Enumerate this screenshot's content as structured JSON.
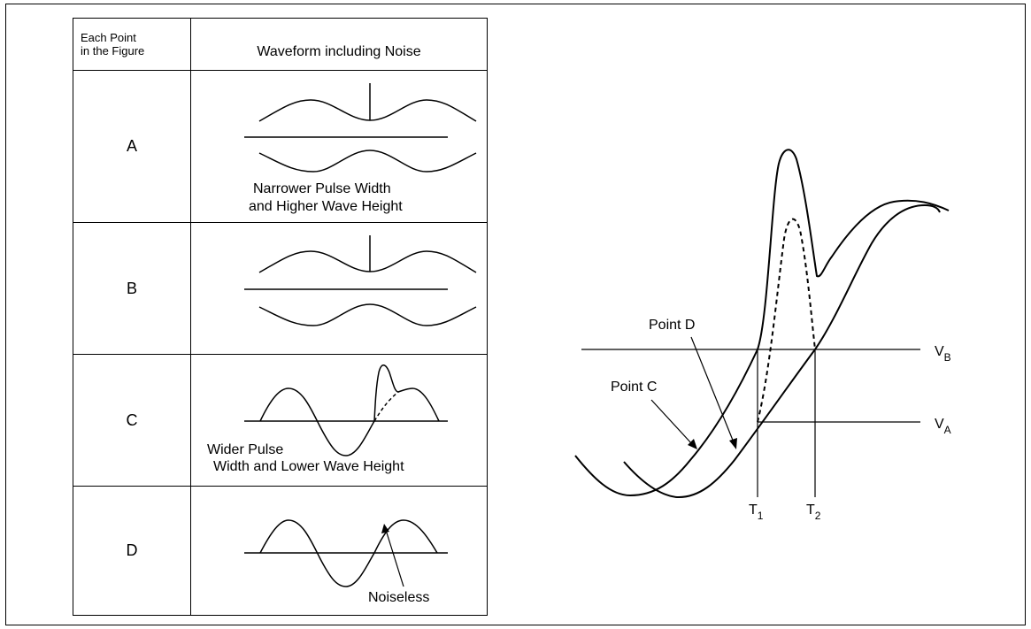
{
  "table": {
    "header_point": "Each Point in the Figure",
    "header_point_line1": "Each Point",
    "header_point_line2": "in the Figure",
    "header_waveform": "Waveform including Noise",
    "rows": [
      {
        "label": "A",
        "caption_line1": "Narrower Pulse Width",
        "caption_line2": "and Higher Wave Height"
      },
      {
        "label": "B"
      },
      {
        "label": "C",
        "caption_line1": "Wider Pulse",
        "caption_line2": "Width and Lower Wave Height"
      },
      {
        "label": "D",
        "caption_line1": "Noiseless"
      }
    ]
  },
  "diagram": {
    "point_d": "Point D",
    "point_c": "Point C",
    "vb": {
      "main": "V",
      "sub": "B"
    },
    "va": {
      "main": "V",
      "sub": "A"
    },
    "t1": {
      "main": "T",
      "sub": "1"
    },
    "t2": {
      "main": "T",
      "sub": "2"
    }
  }
}
